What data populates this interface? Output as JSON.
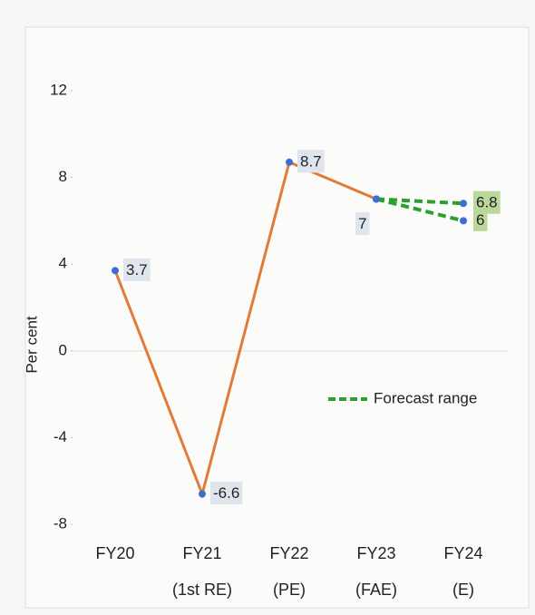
{
  "chart_data": {
    "type": "line",
    "y_label": "Per cent",
    "categories": [
      "FY20",
      "FY21\n(1st RE)",
      "FY22\n(PE)",
      "FY23\n(FAE)",
      "FY24\n(E)"
    ],
    "series": [
      {
        "color": "#e07b39",
        "values": [
          3.7,
          -6.6,
          8.7,
          7.0,
          null
        ]
      },
      {
        "name": "Forecast range",
        "color": "#2ca02c",
        "dashed": true,
        "values": [
          null,
          null,
          null,
          7.0,
          6.8
        ]
      },
      {
        "color": "#2ca02c",
        "dashed": true,
        "values": [
          null,
          null,
          null,
          7.0,
          6.0
        ]
      }
    ],
    "ylim": [
      -9,
      13
    ],
    "yticks": [
      -8,
      -4,
      0,
      4,
      8,
      12
    ],
    "zero_line": true,
    "legend": "right"
  }
}
